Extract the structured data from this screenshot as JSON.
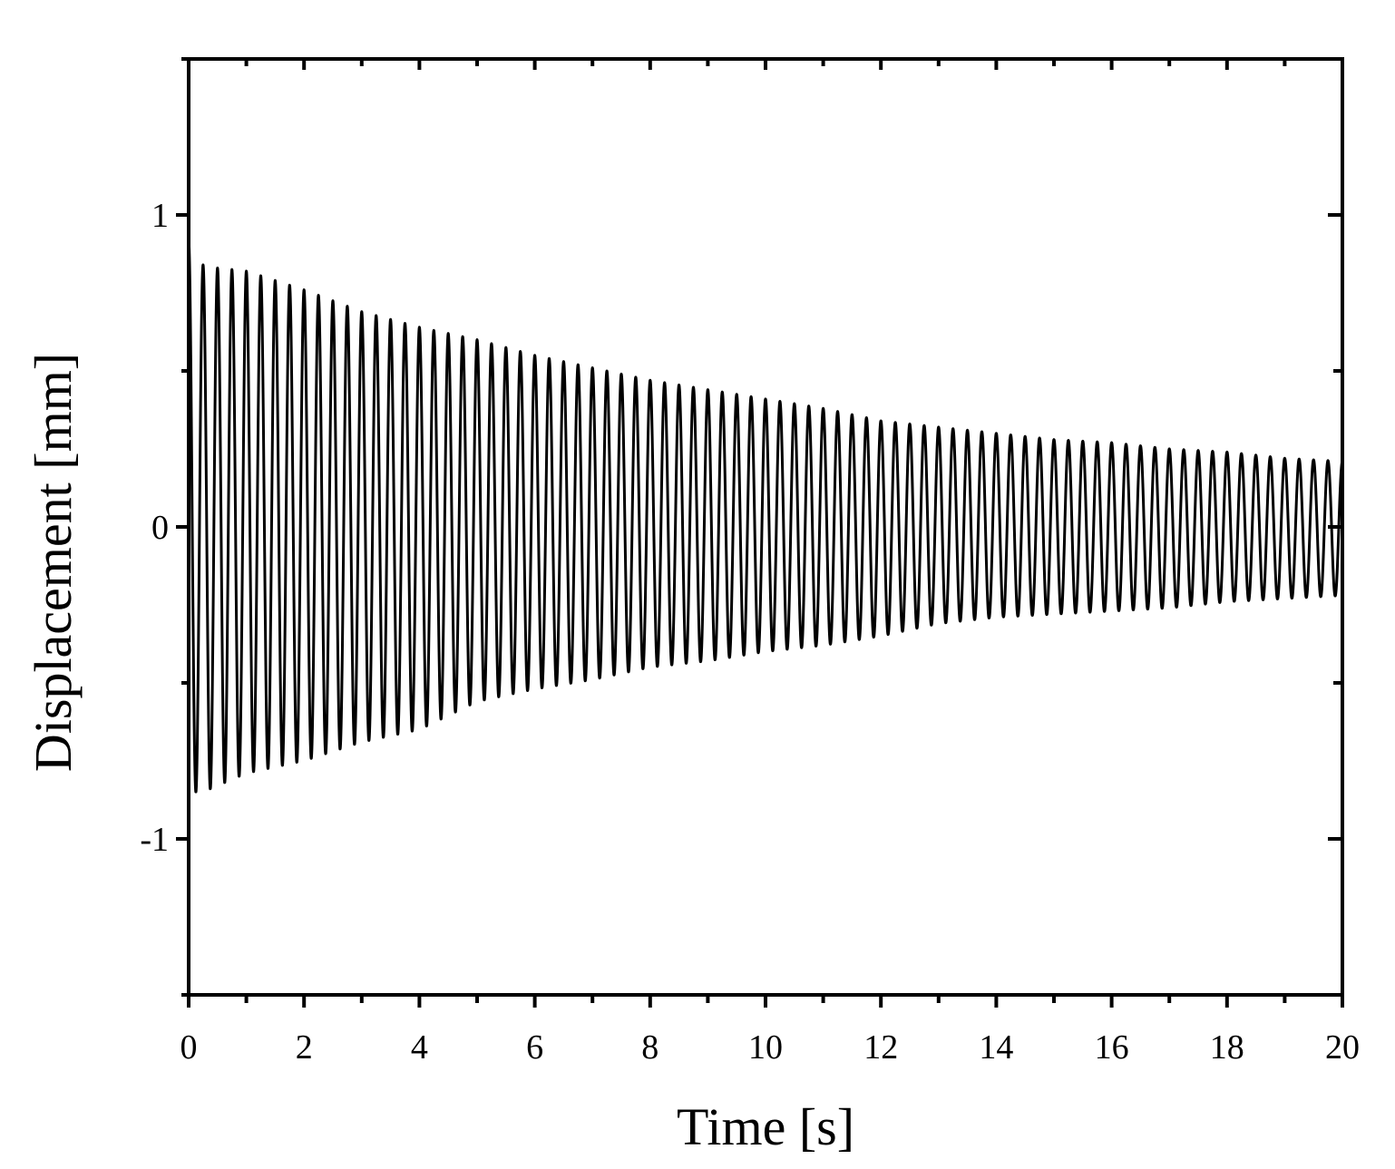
{
  "chart_data": {
    "type": "line",
    "title": "",
    "xlabel": "Time [s]",
    "ylabel": "Displacement [mm]",
    "xlim": [
      0,
      20
    ],
    "ylim": [
      -1.5,
      1.5
    ],
    "x_ticks": [
      0,
      2,
      4,
      6,
      8,
      10,
      12,
      14,
      16,
      18,
      20
    ],
    "x_tick_labels": [
      "0",
      "2",
      "4",
      "6",
      "8",
      "10",
      "12",
      "14",
      "16",
      "18",
      "20"
    ],
    "x_minor_ticks": [
      1,
      3,
      5,
      7,
      9,
      11,
      13,
      15,
      17,
      19
    ],
    "y_ticks": [
      -1,
      0,
      1
    ],
    "y_tick_labels": [
      "-1",
      "0",
      "1"
    ],
    "y_minor_ticks": [
      -1.5,
      -0.5,
      0.5,
      1.5
    ],
    "grid": false,
    "legend": "none",
    "series": [
      {
        "color": "#000000",
        "frequency_hz": 4.0,
        "x": [
          0,
          0.25,
          0.5,
          1,
          2,
          3,
          4,
          5,
          6,
          7,
          8,
          9,
          10,
          11,
          12,
          13,
          14,
          15,
          16,
          17,
          18,
          19,
          20
        ],
        "upper_envelope": [
          0.92,
          0.84,
          0.83,
          0.82,
          0.76,
          0.69,
          0.64,
          0.6,
          0.55,
          0.51,
          0.47,
          0.44,
          0.41,
          0.38,
          0.34,
          0.32,
          0.3,
          0.28,
          0.27,
          0.25,
          0.24,
          0.22,
          0.21
        ],
        "lower_envelope": [
          -0.85,
          -0.85,
          -0.83,
          -0.79,
          -0.75,
          -0.69,
          -0.65,
          -0.56,
          -0.52,
          -0.49,
          -0.45,
          -0.43,
          -0.4,
          -0.38,
          -0.35,
          -0.31,
          -0.29,
          -0.28,
          -0.27,
          -0.26,
          -0.24,
          -0.23,
          -0.22
        ]
      }
    ]
  }
}
